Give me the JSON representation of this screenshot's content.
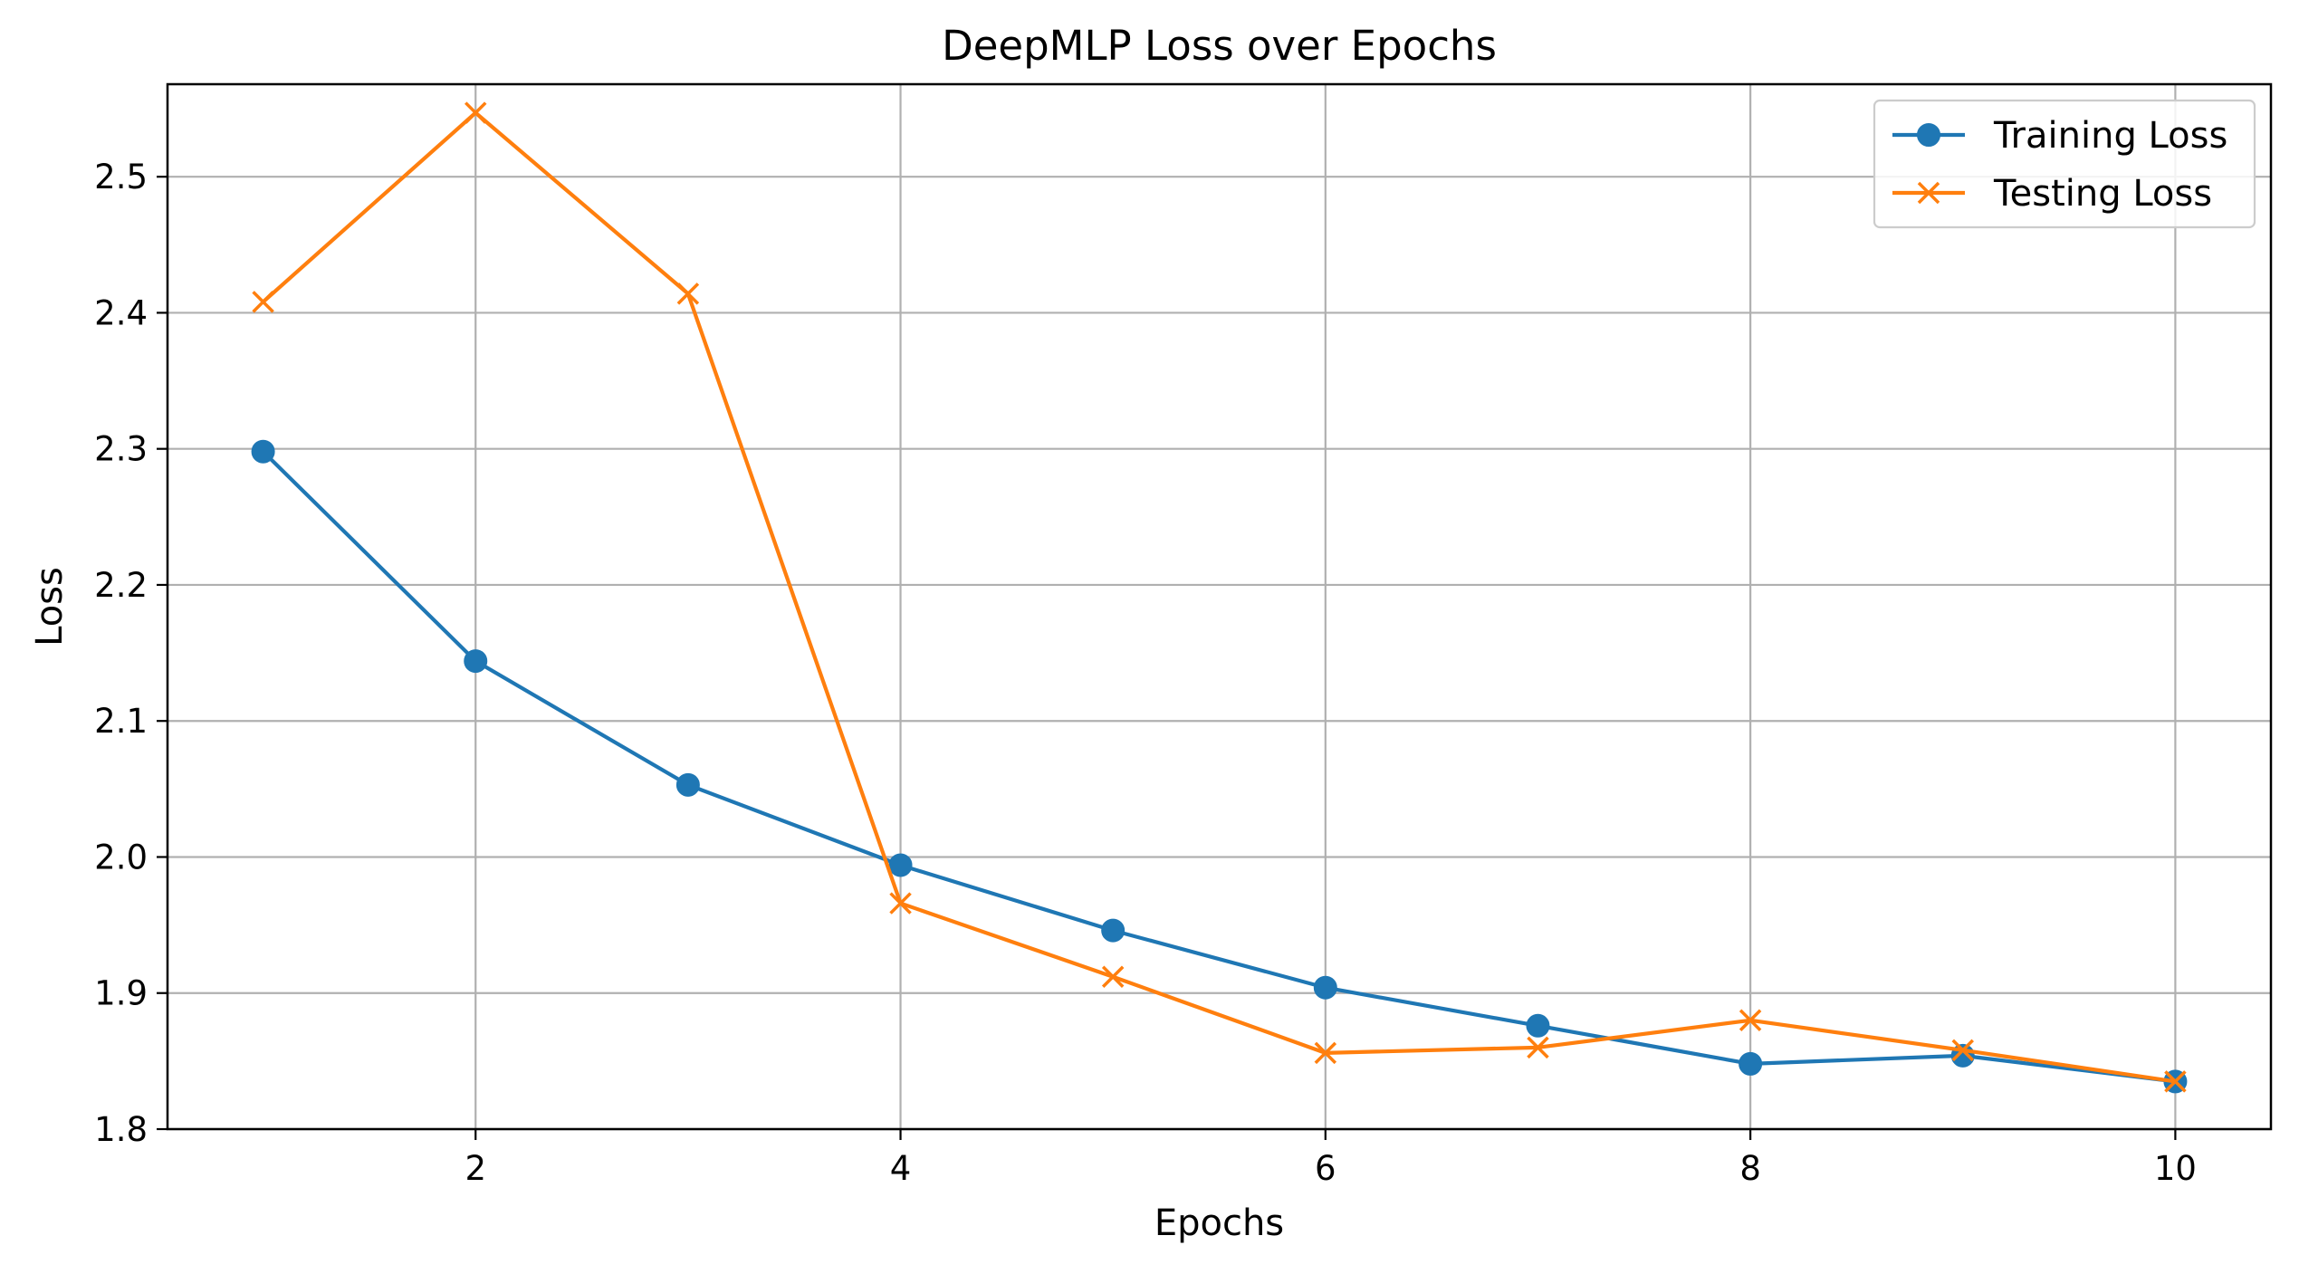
{
  "chart_data": {
    "type": "line",
    "title": "DeepMLP Loss over Epochs",
    "xlabel": "Epochs",
    "ylabel": "Loss",
    "x": [
      1,
      2,
      3,
      4,
      5,
      6,
      7,
      8,
      9,
      10
    ],
    "xlim": [
      0.55,
      10.45
    ],
    "ylim": [
      1.8,
      2.568
    ],
    "xticks": [
      2,
      4,
      6,
      8,
      10
    ],
    "xtick_labels": [
      "2",
      "4",
      "6",
      "8",
      "10"
    ],
    "yticks": [
      1.8,
      1.9,
      2.0,
      2.1,
      2.2,
      2.3,
      2.4,
      2.5
    ],
    "ytick_labels": [
      "1.8",
      "1.9",
      "2.0",
      "2.1",
      "2.2",
      "2.3",
      "2.4",
      "2.5"
    ],
    "grid": true,
    "legend_position": "top-right",
    "series": [
      {
        "name": "Training Loss",
        "marker": "circle",
        "color": "#1f77b4",
        "values": [
          2.298,
          2.144,
          2.053,
          1.994,
          1.946,
          1.904,
          1.876,
          1.848,
          1.854,
          1.835
        ]
      },
      {
        "name": "Testing Loss",
        "marker": "x",
        "color": "#ff7f0e",
        "values": [
          2.408,
          2.547,
          2.414,
          1.966,
          1.912,
          1.856,
          1.86,
          1.88,
          1.858,
          1.835
        ]
      }
    ]
  }
}
